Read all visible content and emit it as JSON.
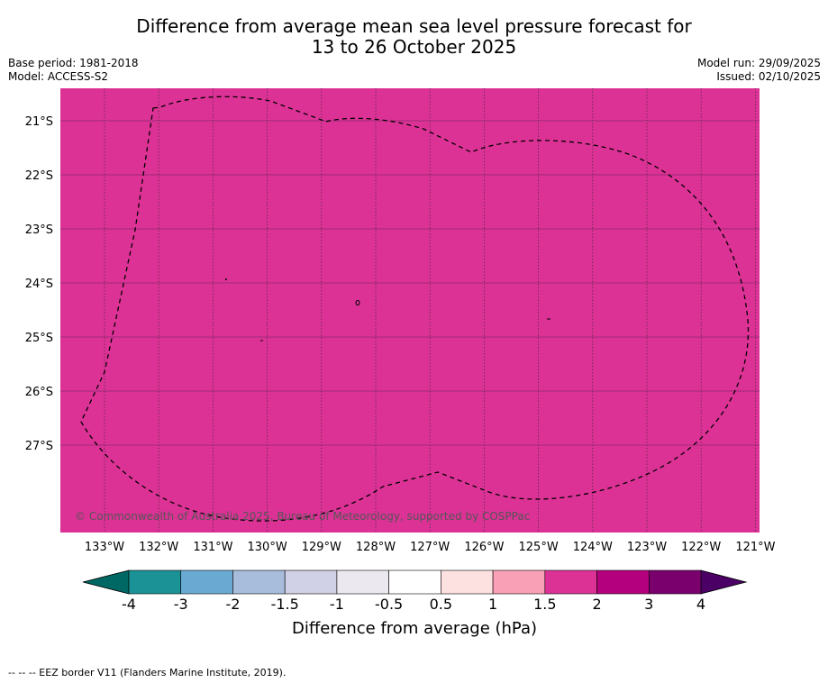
{
  "title_line1": "Difference from average mean sea level pressure forecast for",
  "title_line2": "13 to 26 October 2025",
  "base_period": "Base period: 1981-2018",
  "model": "Model: ACCESS-S2",
  "model_run": "Model run: 29/09/2025",
  "issued": "Issued: 02/10/2025",
  "copyright": "© Commonwealth of Australia 2025, Bureau of Meteorology, supported by COSPPac",
  "footer": "--  --  -- EEZ border V11 (Flanders Marine Institute, 2019).",
  "map": {
    "lon_labels": [
      "133°W",
      "132°W",
      "131°W",
      "130°W",
      "129°W",
      "128°W",
      "127°W",
      "126°W",
      "125°W",
      "124°W",
      "123°W",
      "122°W",
      "121°W"
    ],
    "lat_labels": [
      "21°S",
      "22°S",
      "23°S",
      "24°S",
      "25°S",
      "26°S",
      "27°S"
    ],
    "fill_color": "#dc3296",
    "fill_value_range": [
      1.5,
      2
    ]
  },
  "colorbar": {
    "label": "Difference from average (hPa)",
    "ticks": [
      "-4",
      "-3",
      "-2",
      "-1.5",
      "-1",
      "-0.5",
      "0.5",
      "1",
      "1.5",
      "2",
      "3",
      "4"
    ],
    "colors": [
      "#1a9296",
      "#6aaad2",
      "#a8bcdc",
      "#d0d0e6",
      "#ece8f0",
      "#ffffff",
      "#fde0e0",
      "#f9a0b6",
      "#dc3296",
      "#b4007e",
      "#7a006e"
    ],
    "under_color": "#006864",
    "over_color": "#4a0064"
  }
}
